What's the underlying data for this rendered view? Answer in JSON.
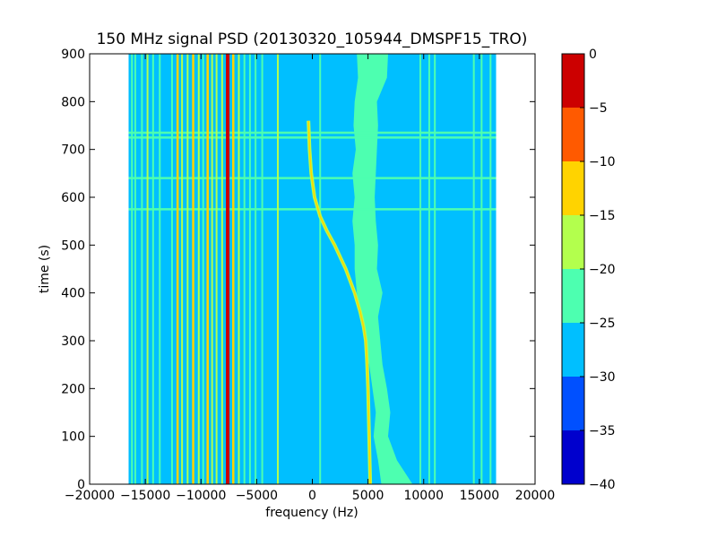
{
  "chart_data": {
    "type": "heatmap",
    "title": "150 MHz signal PSD (20130320_105944_DMSPF15_TRO)",
    "xlabel": "frequency (Hz)",
    "ylabel": "time (s)",
    "xlim": [
      -20000,
      20000
    ],
    "ylim": [
      0,
      900
    ],
    "x_ticks": [
      -20000,
      -15000,
      -10000,
      -5000,
      0,
      5000,
      10000,
      15000,
      20000
    ],
    "y_ticks": [
      0,
      100,
      200,
      300,
      400,
      500,
      600,
      700,
      800,
      900
    ],
    "data_extent_x": [
      -16500,
      16500
    ],
    "colorbar": {
      "range": [
        -40,
        0
      ],
      "ticks": [
        0,
        -5,
        -10,
        -15,
        -20,
        -25,
        -30,
        -35,
        -40
      ],
      "levels": [
        {
          "from": -40,
          "to": -35,
          "color": "#0000cd"
        },
        {
          "from": -35,
          "to": -30,
          "color": "#0050ff"
        },
        {
          "from": -30,
          "to": -25,
          "color": "#00bfff"
        },
        {
          "from": -25,
          "to": -20,
          "color": "#4dffb0"
        },
        {
          "from": -20,
          "to": -15,
          "color": "#b3ff4d"
        },
        {
          "from": -15,
          "to": -10,
          "color": "#ffd300"
        },
        {
          "from": -10,
          "to": -5,
          "color": "#ff5a00"
        },
        {
          "from": -5,
          "to": 0,
          "color": "#cc0000"
        }
      ]
    },
    "background_level": -27.5,
    "vertical_lines": [
      {
        "freq": -16200,
        "level": -22
      },
      {
        "freq": -15900,
        "level": -22
      },
      {
        "freq": -15300,
        "level": -22
      },
      {
        "freq": -14800,
        "level": -17
      },
      {
        "freq": -14300,
        "level": -22
      },
      {
        "freq": -13700,
        "level": -22
      },
      {
        "freq": -12600,
        "level": -22
      },
      {
        "freq": -12100,
        "level": -12
      },
      {
        "freq": -11700,
        "level": -17
      },
      {
        "freq": -11200,
        "level": -17
      },
      {
        "freq": -10700,
        "level": -12
      },
      {
        "freq": -10200,
        "level": -17
      },
      {
        "freq": -9800,
        "level": -22
      },
      {
        "freq": -9400,
        "level": -12
      },
      {
        "freq": -9000,
        "level": -17
      },
      {
        "freq": -8600,
        "level": -17
      },
      {
        "freq": -8100,
        "level": -17
      },
      {
        "freq": -7600,
        "level": -2
      },
      {
        "freq": -7100,
        "level": -12
      },
      {
        "freq": -6600,
        "level": -17
      },
      {
        "freq": -6100,
        "level": -22
      },
      {
        "freq": -5600,
        "level": -22
      },
      {
        "freq": -5100,
        "level": -22
      },
      {
        "freq": -4500,
        "level": -22
      },
      {
        "freq": -3100,
        "level": -17
      },
      {
        "freq": 700,
        "level": -22
      },
      {
        "freq": 9700,
        "level": -22
      },
      {
        "freq": 10500,
        "level": -22
      },
      {
        "freq": 11000,
        "level": -22
      },
      {
        "freq": 14500,
        "level": -22
      },
      {
        "freq": 15200,
        "level": -22
      },
      {
        "freq": 16000,
        "level": -22
      }
    ],
    "horizontal_lines": [
      {
        "time": 575,
        "level": -22
      },
      {
        "time": 640,
        "level": -22
      },
      {
        "time": 725,
        "level": -22
      },
      {
        "time": 735,
        "level": -22
      }
    ],
    "doppler_track": [
      {
        "time": 0,
        "freq": 5200
      },
      {
        "time": 100,
        "freq": 5100
      },
      {
        "time": 200,
        "freq": 5000
      },
      {
        "time": 260,
        "freq": 4900
      },
      {
        "time": 300,
        "freq": 4800
      },
      {
        "time": 330,
        "freq": 4600
      },
      {
        "time": 360,
        "freq": 4300
      },
      {
        "time": 400,
        "freq": 3800
      },
      {
        "time": 450,
        "freq": 3000
      },
      {
        "time": 500,
        "freq": 2000
      },
      {
        "time": 530,
        "freq": 1300
      },
      {
        "time": 560,
        "freq": 700
      },
      {
        "time": 600,
        "freq": 200
      },
      {
        "time": 650,
        "freq": -100
      },
      {
        "time": 700,
        "freq": -250
      },
      {
        "time": 760,
        "freq": -350
      }
    ],
    "band": {
      "level": -22,
      "edges": [
        {
          "time": 0,
          "left": 6200,
          "right": 9000
        },
        {
          "time": 50,
          "left": 5900,
          "right": 7600
        },
        {
          "time": 100,
          "left": 5500,
          "right": 6800
        },
        {
          "time": 150,
          "left": 5700,
          "right": 7000
        },
        {
          "time": 200,
          "left": 5400,
          "right": 6700
        },
        {
          "time": 250,
          "left": 5100,
          "right": 6300
        },
        {
          "time": 300,
          "left": 4700,
          "right": 6100
        },
        {
          "time": 350,
          "left": 4300,
          "right": 5900
        },
        {
          "time": 400,
          "left": 4000,
          "right": 6300
        },
        {
          "time": 450,
          "left": 3800,
          "right": 5800
        },
        {
          "time": 500,
          "left": 3800,
          "right": 5900
        },
        {
          "time": 550,
          "left": 3600,
          "right": 5700
        },
        {
          "time": 600,
          "left": 3800,
          "right": 5600
        },
        {
          "time": 650,
          "left": 3600,
          "right": 5700
        },
        {
          "time": 700,
          "left": 3900,
          "right": 5800
        },
        {
          "time": 750,
          "left": 3700,
          "right": 5900
        },
        {
          "time": 800,
          "left": 3800,
          "right": 5800
        },
        {
          "time": 850,
          "left": 4100,
          "right": 6700
        },
        {
          "time": 900,
          "left": 4000,
          "right": 6800
        }
      ]
    }
  }
}
